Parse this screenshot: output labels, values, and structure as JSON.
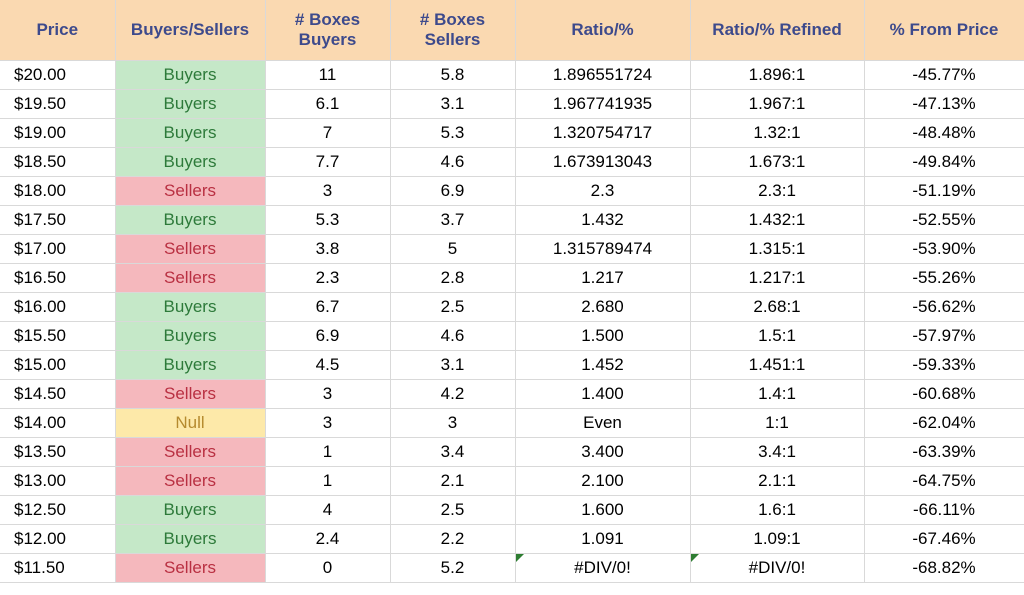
{
  "colors": {
    "header_bg": "#fad9b1",
    "header_text": "#3d4a8c",
    "buyers_bg": "#c5e8c8",
    "buyers_text": "#2d7a3a",
    "sellers_bg": "#f5b8bd",
    "sellers_text": "#b93042",
    "null_bg": "#fde9a9",
    "null_text": "#b58a2e",
    "border": "#d9d9d9",
    "err_flag": "#2e7d32"
  },
  "typography": {
    "header_fontsize_pt": 13,
    "cell_fontsize_pt": 13,
    "font_family": "Arial"
  },
  "columns": [
    "Price",
    "Buyers/Sellers",
    "# Boxes Buyers",
    "# Boxes Sellers",
    "Ratio/%",
    "Ratio/% Refined",
    "% From Price"
  ],
  "rows": [
    {
      "price": "$20.00",
      "bs": "Buyers",
      "bx_b": "11",
      "bx_s": "5.8",
      "ratio": "1.896551724",
      "refined": "1.896:1",
      "pct": "-45.77%",
      "err": false
    },
    {
      "price": "$19.50",
      "bs": "Buyers",
      "bx_b": "6.1",
      "bx_s": "3.1",
      "ratio": "1.967741935",
      "refined": "1.967:1",
      "pct": "-47.13%",
      "err": false
    },
    {
      "price": "$19.00",
      "bs": "Buyers",
      "bx_b": "7",
      "bx_s": "5.3",
      "ratio": "1.320754717",
      "refined": "1.32:1",
      "pct": "-48.48%",
      "err": false
    },
    {
      "price": "$18.50",
      "bs": "Buyers",
      "bx_b": "7.7",
      "bx_s": "4.6",
      "ratio": "1.673913043",
      "refined": "1.673:1",
      "pct": "-49.84%",
      "err": false
    },
    {
      "price": "$18.00",
      "bs": "Sellers",
      "bx_b": "3",
      "bx_s": "6.9",
      "ratio": "2.3",
      "refined": "2.3:1",
      "pct": "-51.19%",
      "err": false
    },
    {
      "price": "$17.50",
      "bs": "Buyers",
      "bx_b": "5.3",
      "bx_s": "3.7",
      "ratio": "1.432",
      "refined": "1.432:1",
      "pct": "-52.55%",
      "err": false
    },
    {
      "price": "$17.00",
      "bs": "Sellers",
      "bx_b": "3.8",
      "bx_s": "5",
      "ratio": "1.315789474",
      "refined": "1.315:1",
      "pct": "-53.90%",
      "err": false
    },
    {
      "price": "$16.50",
      "bs": "Sellers",
      "bx_b": "2.3",
      "bx_s": "2.8",
      "ratio": "1.217",
      "refined": "1.217:1",
      "pct": "-55.26%",
      "err": false
    },
    {
      "price": "$16.00",
      "bs": "Buyers",
      "bx_b": "6.7",
      "bx_s": "2.5",
      "ratio": "2.680",
      "refined": "2.68:1",
      "pct": "-56.62%",
      "err": false
    },
    {
      "price": "$15.50",
      "bs": "Buyers",
      "bx_b": "6.9",
      "bx_s": "4.6",
      "ratio": "1.500",
      "refined": "1.5:1",
      "pct": "-57.97%",
      "err": false
    },
    {
      "price": "$15.00",
      "bs": "Buyers",
      "bx_b": "4.5",
      "bx_s": "3.1",
      "ratio": "1.452",
      "refined": "1.451:1",
      "pct": "-59.33%",
      "err": false
    },
    {
      "price": "$14.50",
      "bs": "Sellers",
      "bx_b": "3",
      "bx_s": "4.2",
      "ratio": "1.400",
      "refined": "1.4:1",
      "pct": "-60.68%",
      "err": false
    },
    {
      "price": "$14.00",
      "bs": "Null",
      "bx_b": "3",
      "bx_s": "3",
      "ratio": "Even",
      "refined": "1:1",
      "pct": "-62.04%",
      "err": false
    },
    {
      "price": "$13.50",
      "bs": "Sellers",
      "bx_b": "1",
      "bx_s": "3.4",
      "ratio": "3.400",
      "refined": "3.4:1",
      "pct": "-63.39%",
      "err": false
    },
    {
      "price": "$13.00",
      "bs": "Sellers",
      "bx_b": "1",
      "bx_s": "2.1",
      "ratio": "2.100",
      "refined": "2.1:1",
      "pct": "-64.75%",
      "err": false
    },
    {
      "price": "$12.50",
      "bs": "Buyers",
      "bx_b": "4",
      "bx_s": "2.5",
      "ratio": "1.600",
      "refined": "1.6:1",
      "pct": "-66.11%",
      "err": false
    },
    {
      "price": "$12.00",
      "bs": "Buyers",
      "bx_b": "2.4",
      "bx_s": "2.2",
      "ratio": "1.091",
      "refined": "1.09:1",
      "pct": "-67.46%",
      "err": false
    },
    {
      "price": "$11.50",
      "bs": "Sellers",
      "bx_b": "0",
      "bx_s": "5.2",
      "ratio": "#DIV/0!",
      "refined": "#DIV/0!",
      "pct": "-68.82%",
      "err": true
    }
  ]
}
